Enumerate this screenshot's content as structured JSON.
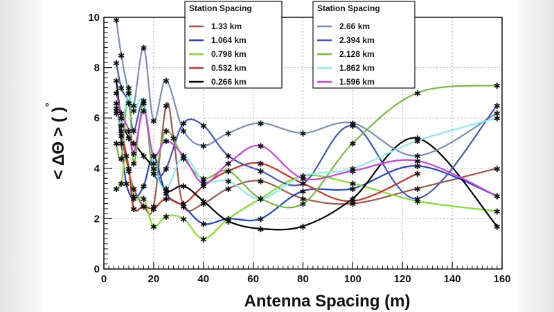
{
  "chart_data": {
    "type": "line",
    "xlabel": "Antenna Spacing (m)",
    "ylabel": "< ΔΘ > ( )",
    "ylabel_degree_symbol": "°",
    "xlim": [
      0,
      160
    ],
    "ylim": [
      0,
      10
    ],
    "xticks": [
      0,
      20,
      40,
      60,
      80,
      100,
      120,
      140,
      160
    ],
    "yticks": [
      0,
      2,
      4,
      6,
      8,
      10
    ],
    "grid": true,
    "legends": [
      {
        "title": "Station Spacing",
        "placement": "top-center-left",
        "entries": [
          {
            "label": "1.33 km",
            "series": 0
          },
          {
            "label": "1.064 km",
            "series": 1
          },
          {
            "label": "0.798 km",
            "series": 2
          },
          {
            "label": "0.532 km",
            "series": 3
          },
          {
            "label": "0.266 km",
            "series": 4
          }
        ]
      },
      {
        "title": "Station Spacing",
        "placement": "top-center-right",
        "entries": [
          {
            "label": "2.66 km",
            "series": 5
          },
          {
            "label": "2.394 km",
            "series": 6
          },
          {
            "label": "2.128 km",
            "series": 7
          },
          {
            "label": "1.862 km",
            "series": 8
          },
          {
            "label": "1.596 km",
            "series": 9
          }
        ]
      }
    ],
    "series": [
      {
        "name": "1.33 km",
        "color": "#a0564a",
        "points": [
          [
            5,
            6.4
          ],
          [
            7,
            5.3
          ],
          [
            10,
            3.9
          ],
          [
            12,
            3.2
          ],
          [
            16,
            2.5
          ],
          [
            20,
            2.5
          ],
          [
            25,
            6.5
          ],
          [
            28,
            5.2
          ],
          [
            32,
            2.5
          ],
          [
            40,
            2.6
          ],
          [
            50,
            3.2
          ],
          [
            63,
            3.5
          ],
          [
            80,
            2.8
          ],
          [
            100,
            2.6
          ],
          [
            126,
            3.2
          ],
          [
            158,
            4.0
          ]
        ]
      },
      {
        "name": "1.064 km",
        "color": "#2244cc",
        "points": [
          [
            5,
            6.6
          ],
          [
            7,
            5.0
          ],
          [
            9,
            3.4
          ],
          [
            12,
            2.8
          ],
          [
            16,
            3.3
          ],
          [
            20,
            4.5
          ],
          [
            25,
            3.0
          ],
          [
            32,
            2.5
          ],
          [
            40,
            1.8
          ],
          [
            50,
            2.0
          ],
          [
            63,
            2.0
          ],
          [
            80,
            3.1
          ],
          [
            100,
            3.2
          ],
          [
            126,
            4.1
          ],
          [
            158,
            2.9
          ]
        ]
      },
      {
        "name": "0.798 km",
        "color": "#88dd33",
        "points": [
          [
            5,
            3.2
          ],
          [
            7,
            3.4
          ],
          [
            9,
            4.5
          ],
          [
            12,
            2.9
          ],
          [
            16,
            2.8
          ],
          [
            20,
            1.7
          ],
          [
            25,
            2.1
          ],
          [
            32,
            2.0
          ],
          [
            40,
            1.2
          ],
          [
            50,
            2.0
          ],
          [
            63,
            2.8
          ],
          [
            80,
            3.7
          ],
          [
            100,
            3.4
          ],
          [
            126,
            2.7
          ],
          [
            158,
            2.3
          ]
        ]
      },
      {
        "name": "0.532 km",
        "color": "#cc3322",
        "points": [
          [
            5,
            6.3
          ],
          [
            7,
            5.5
          ],
          [
            10,
            4.0
          ],
          [
            12,
            2.4
          ],
          [
            16,
            2.5
          ],
          [
            20,
            2.4
          ],
          [
            25,
            2.8
          ],
          [
            32,
            2.6
          ],
          [
            40,
            3.3
          ],
          [
            50,
            3.9
          ],
          [
            63,
            4.2
          ],
          [
            80,
            3.4
          ],
          [
            100,
            2.7
          ],
          [
            126,
            3.8
          ]
        ]
      },
      {
        "name": "0.266 km",
        "color": "#000000",
        "points": [
          [
            5,
            7.5
          ],
          [
            7,
            6.0
          ],
          [
            10,
            5.2
          ],
          [
            12,
            5.0
          ],
          [
            16,
            4.5
          ],
          [
            20,
            4.0
          ],
          [
            25,
            3.1
          ],
          [
            32,
            3.3
          ],
          [
            40,
            2.7
          ],
          [
            50,
            1.9
          ],
          [
            63,
            1.6
          ],
          [
            80,
            1.7
          ],
          [
            100,
            2.8
          ],
          [
            126,
            5.2
          ],
          [
            158,
            1.7
          ]
        ]
      },
      {
        "name": "2.66 km",
        "color": "#7a8fba",
        "points": [
          [
            5,
            9.9
          ],
          [
            7,
            8.5
          ],
          [
            10,
            7.0
          ],
          [
            12,
            6.5
          ],
          [
            16,
            8.8
          ],
          [
            20,
            5.9
          ],
          [
            25,
            7.5
          ],
          [
            32,
            5.5
          ],
          [
            40,
            4.9
          ],
          [
            50,
            5.4
          ],
          [
            63,
            5.8
          ],
          [
            80,
            5.4
          ],
          [
            100,
            5.8
          ],
          [
            126,
            4.5
          ],
          [
            158,
            6.2
          ]
        ]
      },
      {
        "name": "2.394 km",
        "color": "#4455bb",
        "points": [
          [
            5,
            8.2
          ],
          [
            7,
            7.2
          ],
          [
            10,
            6.6
          ],
          [
            12,
            5.5
          ],
          [
            16,
            6.6
          ],
          [
            20,
            3.8
          ],
          [
            25,
            4.0
          ],
          [
            32,
            5.8
          ],
          [
            40,
            5.7
          ],
          [
            50,
            4.5
          ],
          [
            63,
            3.9
          ],
          [
            80,
            3.4
          ],
          [
            100,
            5.7
          ],
          [
            126,
            2.8
          ],
          [
            158,
            6.5
          ]
        ]
      },
      {
        "name": "2.128 km",
        "color": "#77bb44",
        "points": [
          [
            5,
            5.0
          ],
          [
            7,
            4.4
          ],
          [
            10,
            7.2
          ],
          [
            12,
            4.2
          ],
          [
            16,
            6.6
          ],
          [
            20,
            3.8
          ],
          [
            25,
            5.5
          ],
          [
            32,
            4.4
          ],
          [
            40,
            3.6
          ],
          [
            50,
            3.9
          ],
          [
            63,
            2.8
          ],
          [
            80,
            2.6
          ],
          [
            100,
            5.0
          ],
          [
            126,
            7.0
          ],
          [
            158,
            7.3
          ]
        ]
      },
      {
        "name": "1.862 km",
        "color": "#88eeee",
        "points": [
          [
            5,
            6.2
          ],
          [
            7,
            5.7
          ],
          [
            10,
            7.0
          ],
          [
            12,
            6.3
          ],
          [
            16,
            6.7
          ],
          [
            20,
            4.2
          ],
          [
            25,
            3.2
          ],
          [
            32,
            4.5
          ],
          [
            40,
            3.5
          ],
          [
            50,
            3.5
          ],
          [
            63,
            2.8
          ],
          [
            80,
            3.7
          ],
          [
            100,
            4.0
          ],
          [
            126,
            5.1
          ],
          [
            158,
            6.0
          ]
        ]
      },
      {
        "name": "1.596 km",
        "color": "#cc44dd",
        "points": [
          [
            5,
            7.0
          ],
          [
            7,
            6.2
          ],
          [
            10,
            5.5
          ],
          [
            12,
            4.6
          ],
          [
            16,
            6.3
          ],
          [
            20,
            4.5
          ],
          [
            25,
            5.1
          ],
          [
            32,
            4.5
          ],
          [
            40,
            3.4
          ],
          [
            50,
            4.2
          ],
          [
            63,
            4.9
          ],
          [
            80,
            3.6
          ],
          [
            100,
            3.9
          ],
          [
            126,
            4.3
          ],
          [
            158,
            2.9
          ]
        ]
      }
    ]
  }
}
